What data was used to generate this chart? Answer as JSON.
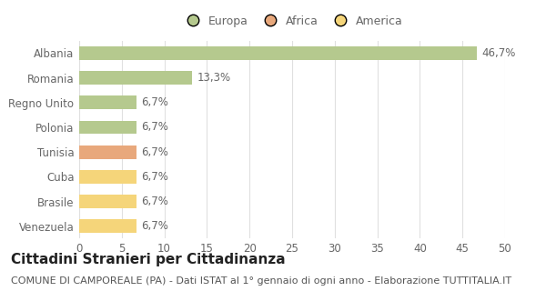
{
  "categories": [
    "Albania",
    "Romania",
    "Regno Unito",
    "Polonia",
    "Tunisia",
    "Cuba",
    "Brasile",
    "Venezuela"
  ],
  "values": [
    46.7,
    13.3,
    6.7,
    6.7,
    6.7,
    6.7,
    6.7,
    6.7
  ],
  "labels": [
    "46,7%",
    "13,3%",
    "6,7%",
    "6,7%",
    "6,7%",
    "6,7%",
    "6,7%",
    "6,7%"
  ],
  "colors": [
    "#b5c98e",
    "#b5c98e",
    "#b5c98e",
    "#b5c98e",
    "#e8a87c",
    "#f5d57a",
    "#f5d57a",
    "#f5d57a"
  ],
  "legend": [
    {
      "label": "Europa",
      "color": "#b5c98e"
    },
    {
      "label": "Africa",
      "color": "#e8a87c"
    },
    {
      "label": "America",
      "color": "#f5d57a"
    }
  ],
  "xlim": [
    0,
    50
  ],
  "xticks": [
    0,
    5,
    10,
    15,
    20,
    25,
    30,
    35,
    40,
    45,
    50
  ],
  "title": "Cittadini Stranieri per Cittadinanza",
  "subtitle": "COMUNE DI CAMPOREALE (PA) - Dati ISTAT al 1° gennaio di ogni anno - Elaborazione TUTTITALIA.IT",
  "background_color": "#ffffff",
  "grid_color": "#e0e0e0",
  "bar_height": 0.55,
  "title_fontsize": 11,
  "subtitle_fontsize": 8,
  "label_fontsize": 8.5,
  "tick_fontsize": 8.5,
  "legend_fontsize": 9
}
